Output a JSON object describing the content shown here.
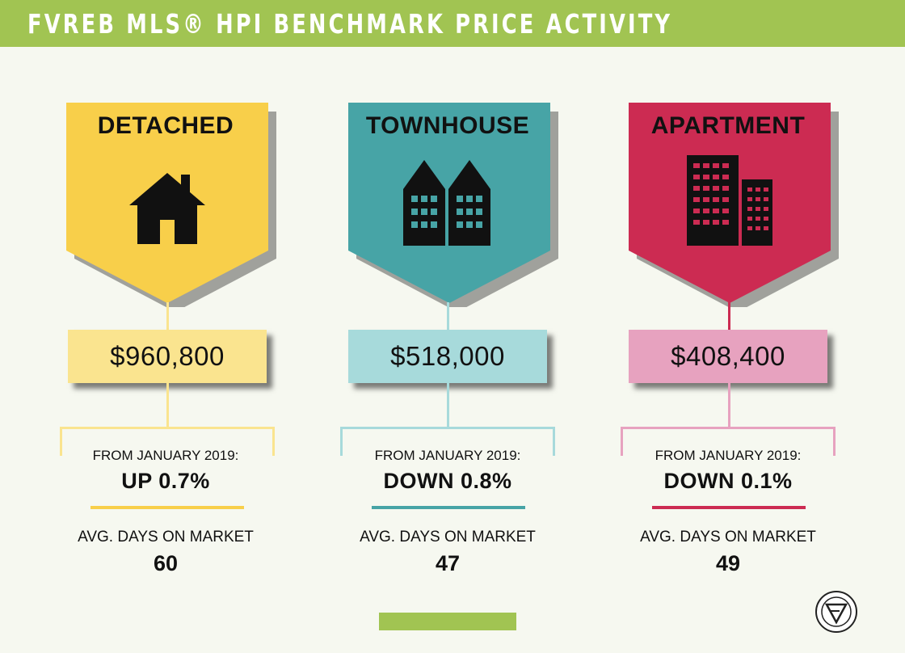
{
  "header": {
    "title": "FVREB MLS® HPI BENCHMARK PRICE ACTIVITY"
  },
  "colors": {
    "header_green": "#a1c452",
    "detached": "#f8cf4a",
    "detached_light": "#fae48f",
    "townhouse": "#47a4a6",
    "townhouse_light": "#a7dadb",
    "apartment": "#cc2b52",
    "apartment_light": "#e7a2bf"
  },
  "categories": {
    "detached": {
      "label": "DETACHED",
      "icon": "house-icon",
      "price": "$960,800",
      "from_label": "FROM JANUARY 2019:",
      "change": "UP 0.7%",
      "days_label": "AVG. DAYS ON MARKET",
      "days_value": "60"
    },
    "townhouse": {
      "label": "TOWNHOUSE",
      "icon": "townhouse-icon",
      "price": "$518,000",
      "from_label": "FROM JANUARY 2019:",
      "change": "DOWN 0.8%",
      "days_label": "AVG. DAYS ON MARKET",
      "days_value": "47"
    },
    "apartment": {
      "label": "APARTMENT",
      "icon": "apartment-building-icon",
      "price": "$408,400",
      "from_label": "FROM JANUARY 2019:",
      "change": "DOWN 0.1%",
      "days_label": "AVG. DAYS ON MARKET",
      "days_value": "49"
    }
  },
  "footer": {
    "logo": "fraser-valley-real-estate-board-logo"
  }
}
